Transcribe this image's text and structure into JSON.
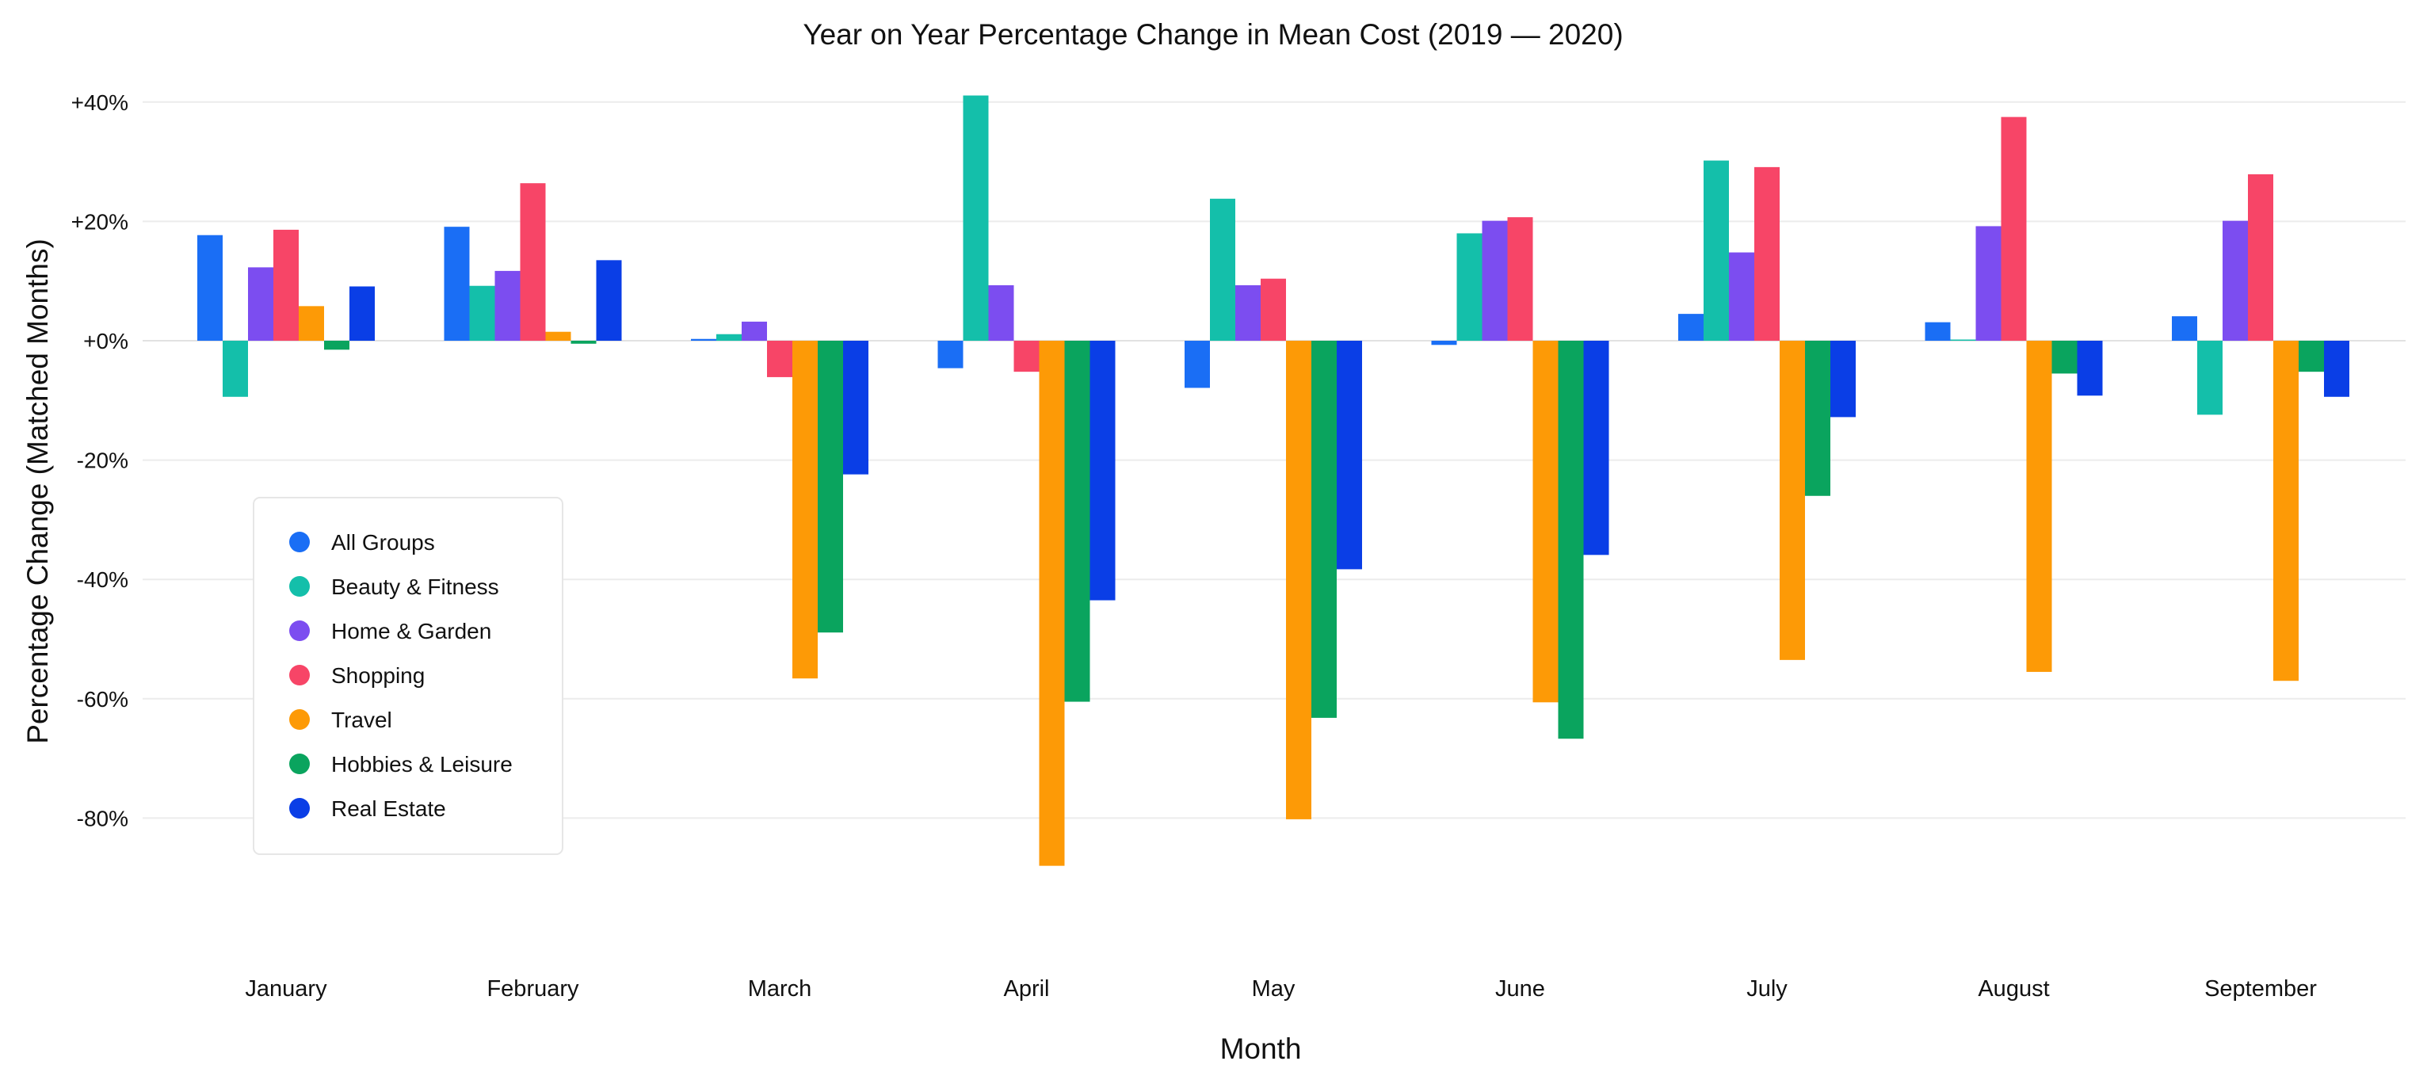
{
  "chart_data": {
    "type": "bar",
    "title": "Year on Year Percentage Change in Mean Cost (2019 — 2020)",
    "xlabel": "Month",
    "ylabel": "Percentage Change (Matched Months)",
    "categories": [
      "January",
      "February",
      "March",
      "April",
      "May",
      "June",
      "July",
      "August",
      "September"
    ],
    "ylim": [
      -100,
      40
    ],
    "yticks": [
      {
        "value": 40,
        "label": "+40%"
      },
      {
        "value": 20,
        "label": "+20%"
      },
      {
        "value": 0,
        "label": "+0%"
      },
      {
        "value": -20,
        "label": "-20%"
      },
      {
        "value": -40,
        "label": "-40%"
      },
      {
        "value": -60,
        "label": "-60%"
      },
      {
        "value": -80,
        "label": "-80%"
      }
    ],
    "grid": true,
    "legend_position": "bottom-left",
    "series": [
      {
        "name": "All Groups",
        "color": "#1a6ef5",
        "values": [
          17.7,
          19.1,
          0.3,
          -4.6,
          -7.9,
          -0.7,
          4.5,
          3.1,
          4.1
        ]
      },
      {
        "name": "Beauty & Fitness",
        "color": "#14bfaa",
        "values": [
          -9.4,
          9.2,
          1.1,
          41.1,
          23.8,
          18.0,
          30.2,
          0.2,
          -12.4
        ]
      },
      {
        "name": "Home & Garden",
        "color": "#7c4df0",
        "values": [
          12.3,
          11.7,
          3.2,
          9.3,
          9.3,
          20.1,
          14.8,
          19.2,
          20.1
        ]
      },
      {
        "name": "Shopping",
        "color": "#f74567",
        "values": [
          18.6,
          26.4,
          -6.1,
          -5.2,
          10.4,
          20.7,
          29.1,
          37.5,
          27.9
        ]
      },
      {
        "name": "Travel",
        "color": "#fd9a06",
        "values": [
          5.8,
          1.5,
          -56.6,
          -88.0,
          -80.2,
          -60.6,
          -53.5,
          -55.5,
          -57.0
        ]
      },
      {
        "name": "Hobbies & Leisure",
        "color": "#0aa45e",
        "values": [
          -1.5,
          -0.5,
          -48.9,
          -60.5,
          -63.2,
          -66.7,
          -26.0,
          -5.5,
          -5.2
        ]
      },
      {
        "name": "Real Estate",
        "color": "#0a3ee6",
        "values": [
          9.1,
          13.5,
          -22.4,
          -43.5,
          -38.3,
          -35.9,
          -12.8,
          -9.2,
          -9.4
        ]
      }
    ]
  }
}
